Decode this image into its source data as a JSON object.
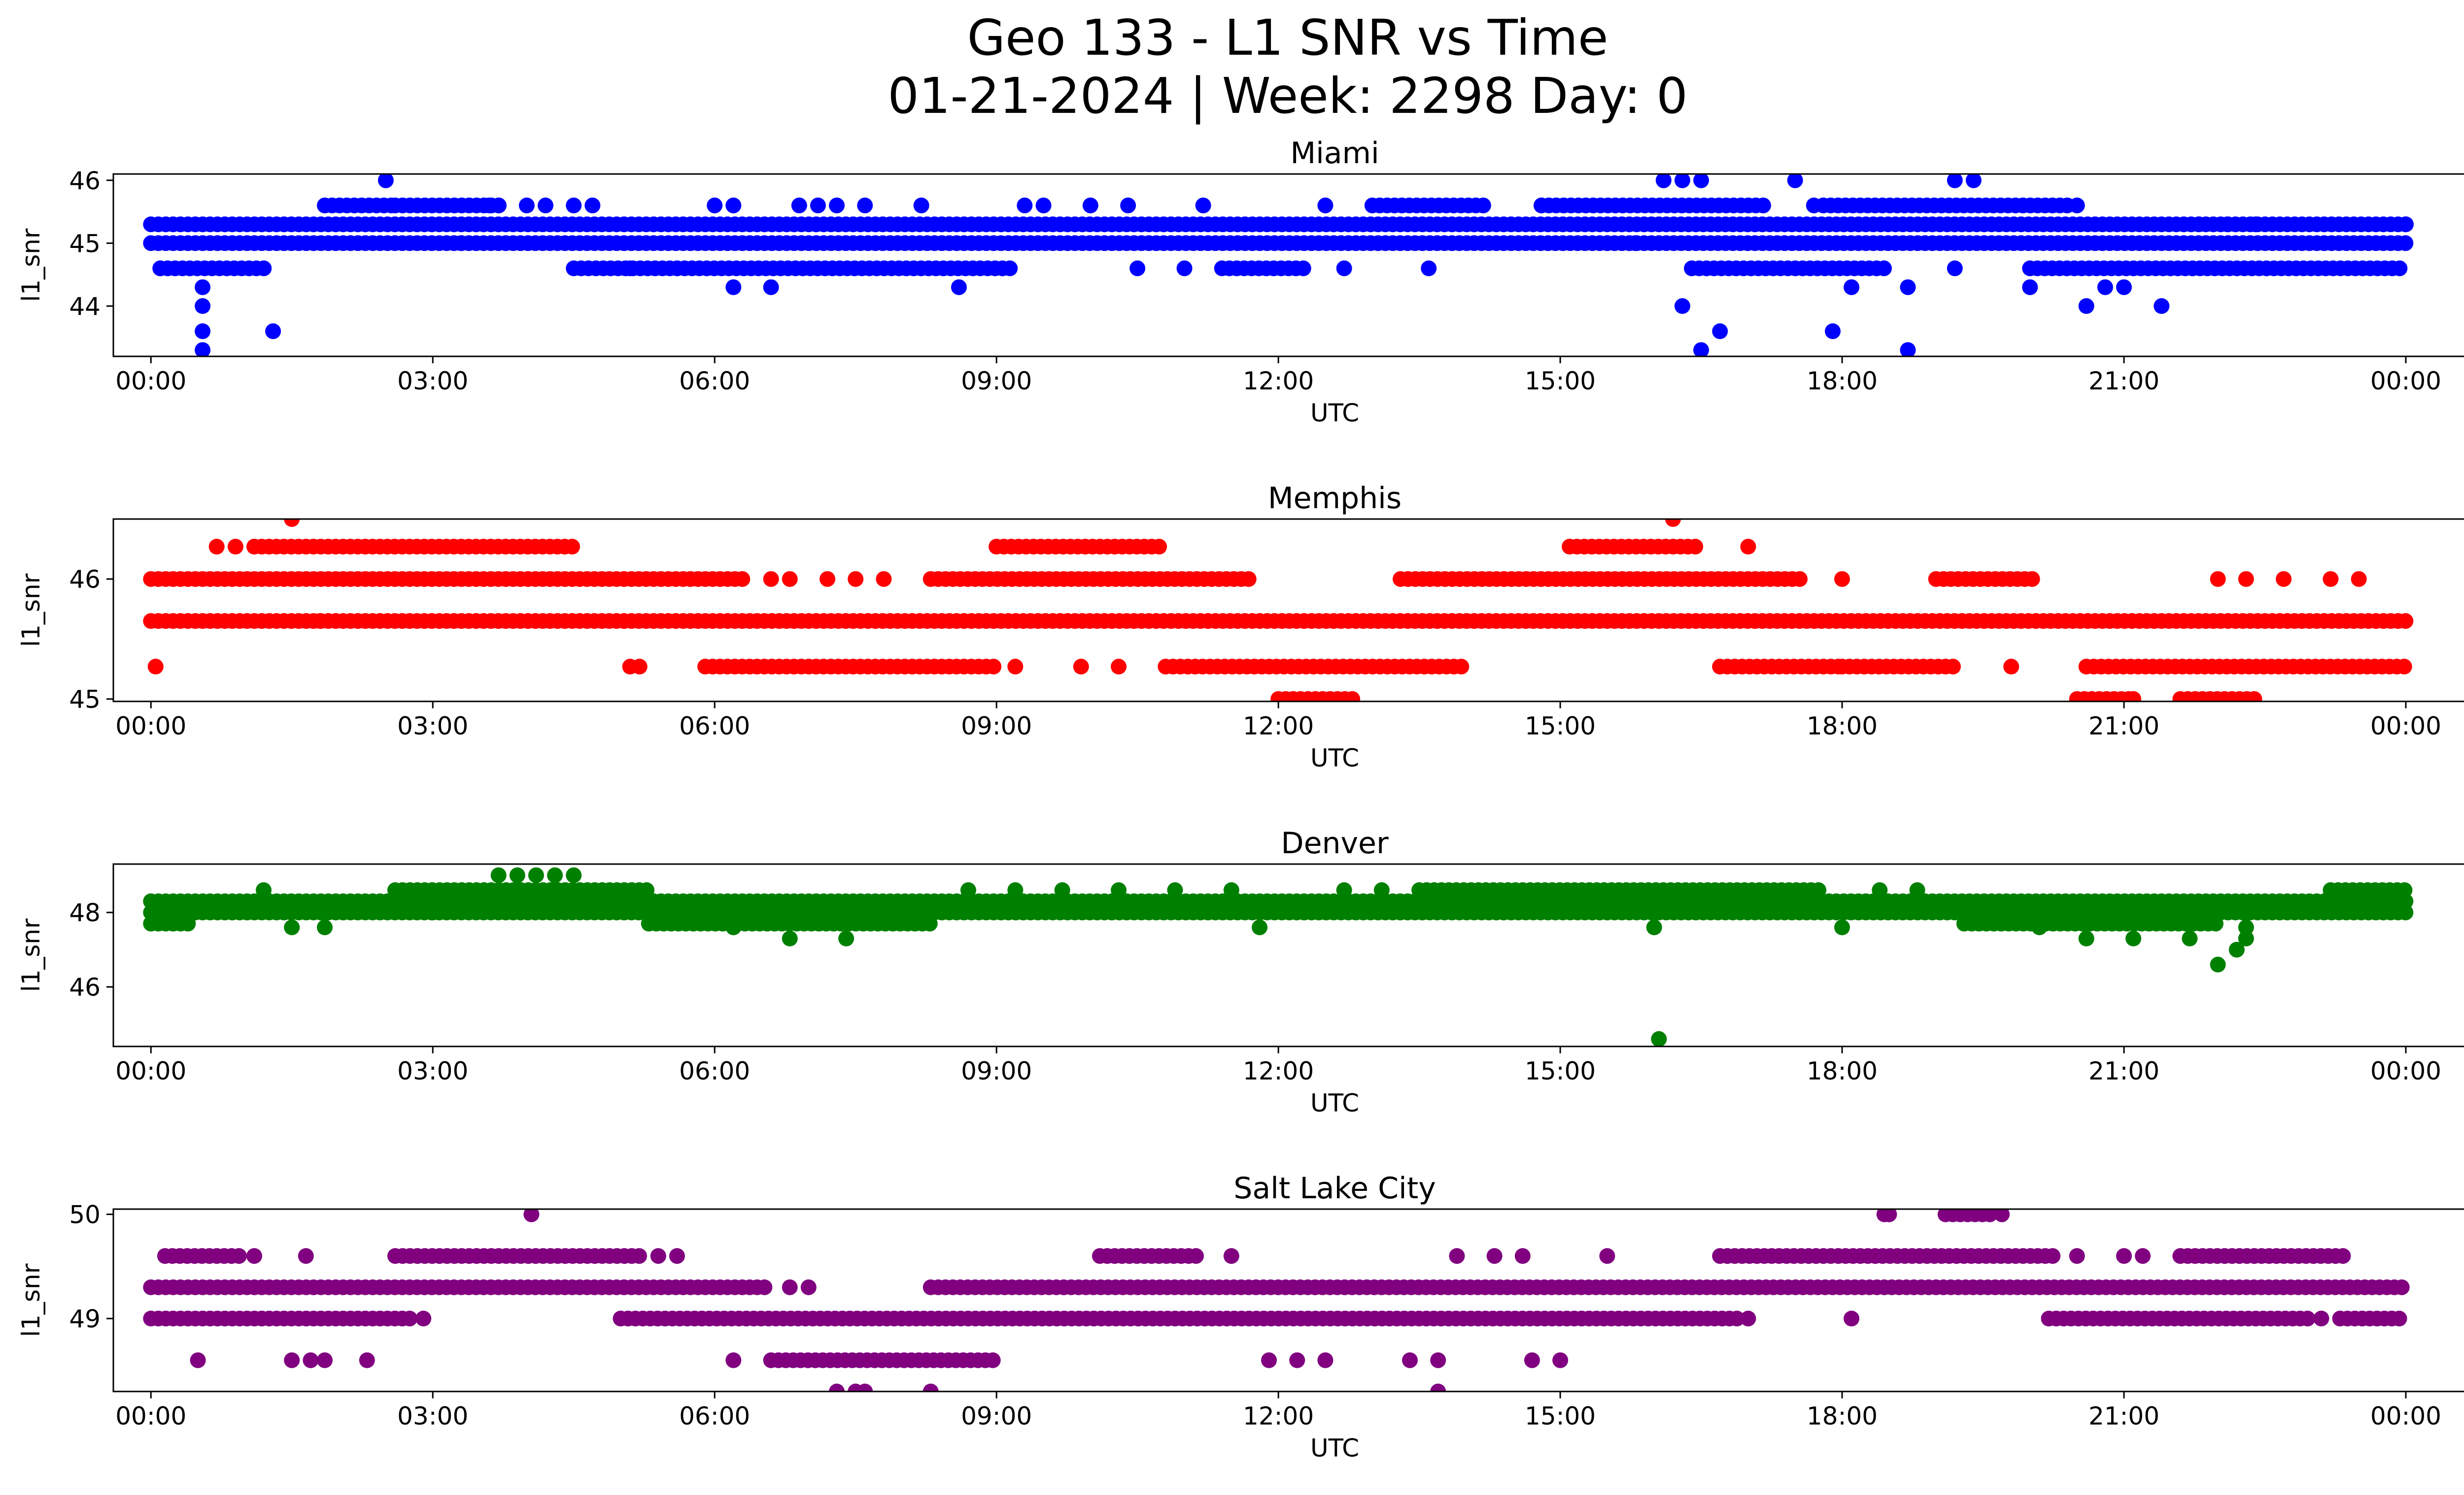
{
  "figure": {
    "title_line1": "Geo 133 - L1 SNR vs Time",
    "title_line2": "01-21-2024 | Week: 2298 Day: 0"
  },
  "chart_data": [
    {
      "type": "scatter",
      "title": "Miami",
      "xlabel": "UTC",
      "ylabel": "l1_snr",
      "color": "#0000ff",
      "x_unit": "hours UTC",
      "xlim": [
        -0.4,
        25.6
      ],
      "ylim": [
        43.2,
        46.1
      ],
      "xticks": [
        0,
        3,
        6,
        9,
        12,
        15,
        18,
        21,
        24
      ],
      "xtick_labels": [
        "00:00",
        "03:00",
        "06:00",
        "09:00",
        "12:00",
        "15:00",
        "18:00",
        "21:00",
        "00:00"
      ],
      "yticks": [
        44,
        45,
        46
      ],
      "ytick_labels": [
        "44",
        "45",
        "46"
      ],
      "grid": false,
      "dense_bands": [
        {
          "y": 45.3,
          "x_range": [
            0.0,
            24.0
          ]
        },
        {
          "y": 45.0,
          "x_range": [
            0.0,
            24.0
          ]
        },
        {
          "y": 45.6,
          "x_range": [
            1.85,
            2.6
          ]
        },
        {
          "y": 45.6,
          "x_range": [
            2.6,
            3.75
          ]
        },
        {
          "y": 45.6,
          "x_range": [
            13.0,
            14.2
          ]
        },
        {
          "y": 45.6,
          "x_range": [
            14.8,
            17.2
          ]
        },
        {
          "y": 45.6,
          "x_range": [
            17.8,
            20.4
          ]
        },
        {
          "y": 44.6,
          "x_range": [
            0.1,
            1.25
          ]
        },
        {
          "y": 44.6,
          "x_range": [
            4.5,
            9.2
          ]
        },
        {
          "y": 44.6,
          "x_range": [
            11.4,
            12.3
          ]
        },
        {
          "y": 44.6,
          "x_range": [
            16.4,
            18.5
          ]
        },
        {
          "y": 44.6,
          "x_range": [
            20.0,
            24.0
          ]
        }
      ],
      "sparse_points": [
        {
          "x": 0.1,
          "y": 44.6
        },
        {
          "x": 0.55,
          "y": 44.3
        },
        {
          "x": 0.55,
          "y": 44.0
        },
        {
          "x": 0.55,
          "y": 43.6
        },
        {
          "x": 0.55,
          "y": 43.3
        },
        {
          "x": 1.3,
          "y": 43.6
        },
        {
          "x": 2.5,
          "y": 46.0
        },
        {
          "x": 3.3,
          "y": 45.0
        },
        {
          "x": 3.6,
          "y": 45.6
        },
        {
          "x": 4.0,
          "y": 45.6
        },
        {
          "x": 4.2,
          "y": 45.6
        },
        {
          "x": 4.5,
          "y": 45.6
        },
        {
          "x": 4.7,
          "y": 45.6
        },
        {
          "x": 5.1,
          "y": 44.6
        },
        {
          "x": 5.6,
          "y": 44.6
        },
        {
          "x": 6.0,
          "y": 45.6
        },
        {
          "x": 6.2,
          "y": 45.6
        },
        {
          "x": 6.2,
          "y": 44.3
        },
        {
          "x": 6.6,
          "y": 44.3
        },
        {
          "x": 6.9,
          "y": 45.6
        },
        {
          "x": 7.1,
          "y": 45.6
        },
        {
          "x": 7.3,
          "y": 45.6
        },
        {
          "x": 7.6,
          "y": 45.6
        },
        {
          "x": 8.2,
          "y": 45.6
        },
        {
          "x": 8.6,
          "y": 44.3
        },
        {
          "x": 9.3,
          "y": 45.6
        },
        {
          "x": 9.5,
          "y": 45.6
        },
        {
          "x": 10.0,
          "y": 45.6
        },
        {
          "x": 10.4,
          "y": 45.6
        },
        {
          "x": 10.5,
          "y": 44.6
        },
        {
          "x": 11.2,
          "y": 45.6
        },
        {
          "x": 11.0,
          "y": 44.6
        },
        {
          "x": 12.5,
          "y": 45.6
        },
        {
          "x": 12.7,
          "y": 44.6
        },
        {
          "x": 13.6,
          "y": 44.6
        },
        {
          "x": 15.5,
          "y": 45.0
        },
        {
          "x": 15.8,
          "y": 45.0
        },
        {
          "x": 16.1,
          "y": 46.0
        },
        {
          "x": 16.3,
          "y": 46.0
        },
        {
          "x": 16.5,
          "y": 46.0
        },
        {
          "x": 16.3,
          "y": 44.0
        },
        {
          "x": 16.5,
          "y": 43.3
        },
        {
          "x": 16.7,
          "y": 43.6
        },
        {
          "x": 17.5,
          "y": 46.0
        },
        {
          "x": 17.7,
          "y": 45.6
        },
        {
          "x": 17.9,
          "y": 43.6
        },
        {
          "x": 18.1,
          "y": 44.3
        },
        {
          "x": 18.7,
          "y": 44.3
        },
        {
          "x": 18.7,
          "y": 43.3
        },
        {
          "x": 19.2,
          "y": 46.0
        },
        {
          "x": 19.4,
          "y": 46.0
        },
        {
          "x": 19.2,
          "y": 44.6
        },
        {
          "x": 20.0,
          "y": 44.3
        },
        {
          "x": 20.5,
          "y": 45.6
        },
        {
          "x": 20.6,
          "y": 44.0
        },
        {
          "x": 20.8,
          "y": 44.3
        },
        {
          "x": 21.0,
          "y": 44.3
        },
        {
          "x": 21.4,
          "y": 44.0
        },
        {
          "x": 21.8,
          "y": 45.3
        },
        {
          "x": 22.1,
          "y": 45.3
        },
        {
          "x": 22.4,
          "y": 45.3
        },
        {
          "x": 24.0,
          "y": 45.3
        }
      ]
    },
    {
      "type": "scatter",
      "title": "Memphis",
      "xlabel": "UTC",
      "ylabel": "l1_snr",
      "color": "#ff0000",
      "x_unit": "hours UTC",
      "xlim": [
        -0.4,
        25.6
      ],
      "ylim": [
        44.98,
        46.5
      ],
      "xticks": [
        0,
        3,
        6,
        9,
        12,
        15,
        18,
        21,
        24
      ],
      "xtick_labels": [
        "00:00",
        "03:00",
        "06:00",
        "09:00",
        "12:00",
        "15:00",
        "18:00",
        "21:00",
        "00:00"
      ],
      "yticks": [
        45,
        46
      ],
      "ytick_labels": [
        "45",
        "46"
      ],
      "grid": false,
      "dense_bands": [
        {
          "y": 46.0,
          "x_range": [
            0.0,
            6.3
          ]
        },
        {
          "y": 46.0,
          "x_range": [
            8.3,
            11.7
          ]
        },
        {
          "y": 46.0,
          "x_range": [
            13.3,
            17.6
          ]
        },
        {
          "y": 46.0,
          "x_range": [
            19.0,
            20.1
          ]
        },
        {
          "y": 46.27,
          "x_range": [
            1.1,
            4.5
          ]
        },
        {
          "y": 46.27,
          "x_range": [
            9.0,
            10.8
          ]
        },
        {
          "y": 46.27,
          "x_range": [
            15.1,
            16.5
          ]
        },
        {
          "y": 45.65,
          "x_range": [
            0.0,
            24.0
          ]
        },
        {
          "y": 45.27,
          "x_range": [
            5.9,
            9.0
          ]
        },
        {
          "y": 45.27,
          "x_range": [
            10.8,
            14.0
          ]
        },
        {
          "y": 45.27,
          "x_range": [
            16.7,
            18.0
          ]
        },
        {
          "y": 45.27,
          "x_range": [
            18.0,
            19.2
          ]
        },
        {
          "y": 45.27,
          "x_range": [
            20.6,
            24.0
          ]
        },
        {
          "y": 45.0,
          "x_range": [
            12.0,
            12.8
          ]
        },
        {
          "y": 45.0,
          "x_range": [
            20.5,
            21.1
          ]
        },
        {
          "y": 45.0,
          "x_range": [
            21.6,
            22.4
          ]
        }
      ],
      "sparse_points": [
        {
          "x": 0.05,
          "y": 45.27
        },
        {
          "x": 0.7,
          "y": 46.27
        },
        {
          "x": 0.9,
          "y": 46.27
        },
        {
          "x": 1.5,
          "y": 46.5
        },
        {
          "x": 1.8,
          "y": 45.65
        },
        {
          "x": 6.6,
          "y": 46.0
        },
        {
          "x": 6.8,
          "y": 46.0
        },
        {
          "x": 7.2,
          "y": 46.0
        },
        {
          "x": 7.5,
          "y": 46.0
        },
        {
          "x": 7.8,
          "y": 46.0
        },
        {
          "x": 5.1,
          "y": 45.27
        },
        {
          "x": 5.2,
          "y": 45.27
        },
        {
          "x": 9.2,
          "y": 45.27
        },
        {
          "x": 9.9,
          "y": 45.27
        },
        {
          "x": 10.3,
          "y": 45.27
        },
        {
          "x": 16.2,
          "y": 46.5
        },
        {
          "x": 17.0,
          "y": 46.27
        },
        {
          "x": 18.0,
          "y": 46.0
        },
        {
          "x": 21.1,
          "y": 45.0
        },
        {
          "x": 22.0,
          "y": 46.0
        },
        {
          "x": 22.3,
          "y": 46.0
        },
        {
          "x": 22.7,
          "y": 46.0
        },
        {
          "x": 23.2,
          "y": 46.0
        },
        {
          "x": 23.5,
          "y": 46.0
        },
        {
          "x": 19.8,
          "y": 45.27
        }
      ]
    },
    {
      "type": "scatter",
      "title": "Denver",
      "xlabel": "UTC",
      "ylabel": "l1_snr",
      "color": "#008000",
      "x_unit": "hours UTC",
      "xlim": [
        -0.4,
        25.6
      ],
      "ylim": [
        44.4,
        49.3
      ],
      "xticks": [
        0,
        3,
        6,
        9,
        12,
        15,
        18,
        21,
        24
      ],
      "xtick_labels": [
        "00:00",
        "03:00",
        "06:00",
        "09:00",
        "12:00",
        "15:00",
        "18:00",
        "21:00",
        "00:00"
      ],
      "yticks": [
        46,
        48
      ],
      "ytick_labels": [
        "46",
        "48"
      ],
      "grid": false,
      "dense_bands": [
        {
          "y": 48.0,
          "x_range": [
            0.0,
            24.0
          ]
        },
        {
          "y": 48.3,
          "x_range": [
            0.0,
            24.0
          ]
        },
        {
          "y": 48.6,
          "x_range": [
            2.6,
            5.3
          ]
        },
        {
          "y": 48.6,
          "x_range": [
            13.5,
            17.8
          ]
        },
        {
          "y": 48.6,
          "x_range": [
            23.2,
            24.0
          ]
        },
        {
          "y": 47.7,
          "x_range": [
            5.3,
            8.3
          ]
        },
        {
          "y": 47.7,
          "x_range": [
            19.3,
            22.0
          ]
        },
        {
          "y": 47.7,
          "x_range": [
            0.0,
            0.4
          ]
        }
      ],
      "sparse_points": [
        {
          "x": 1.2,
          "y": 48.6
        },
        {
          "x": 1.5,
          "y": 47.6
        },
        {
          "x": 1.85,
          "y": 47.6
        },
        {
          "x": 3.0,
          "y": 48.0
        },
        {
          "x": 3.7,
          "y": 49.0
        },
        {
          "x": 3.9,
          "y": 49.0
        },
        {
          "x": 4.1,
          "y": 49.0
        },
        {
          "x": 4.3,
          "y": 49.0
        },
        {
          "x": 4.5,
          "y": 49.0
        },
        {
          "x": 6.2,
          "y": 47.6
        },
        {
          "x": 6.8,
          "y": 47.3
        },
        {
          "x": 7.4,
          "y": 47.3
        },
        {
          "x": 8.7,
          "y": 48.6
        },
        {
          "x": 9.2,
          "y": 48.6
        },
        {
          "x": 9.7,
          "y": 48.6
        },
        {
          "x": 10.3,
          "y": 48.6
        },
        {
          "x": 10.9,
          "y": 48.6
        },
        {
          "x": 11.5,
          "y": 48.6
        },
        {
          "x": 11.8,
          "y": 47.6
        },
        {
          "x": 12.7,
          "y": 48.6
        },
        {
          "x": 13.1,
          "y": 48.6
        },
        {
          "x": 16.0,
          "y": 47.6
        },
        {
          "x": 16.05,
          "y": 44.6
        },
        {
          "x": 18.0,
          "y": 47.6
        },
        {
          "x": 18.4,
          "y": 48.6
        },
        {
          "x": 18.8,
          "y": 48.6
        },
        {
          "x": 20.1,
          "y": 47.6
        },
        {
          "x": 20.6,
          "y": 47.3
        },
        {
          "x": 21.1,
          "y": 47.3
        },
        {
          "x": 21.7,
          "y": 47.3
        },
        {
          "x": 22.0,
          "y": 46.6
        },
        {
          "x": 22.2,
          "y": 47.0
        },
        {
          "x": 22.3,
          "y": 47.3
        },
        {
          "x": 22.3,
          "y": 47.6
        }
      ]
    },
    {
      "type": "scatter",
      "title": "Salt Lake City",
      "xlabel": "UTC",
      "ylabel": "l1_snr",
      "color": "#800080",
      "x_unit": "hours UTC",
      "xlim": [
        -0.4,
        25.6
      ],
      "ylim": [
        48.3,
        50.05
      ],
      "xticks": [
        0,
        3,
        6,
        9,
        12,
        15,
        18,
        21,
        24
      ],
      "xtick_labels": [
        "00:00",
        "03:00",
        "06:00",
        "09:00",
        "12:00",
        "15:00",
        "18:00",
        "21:00",
        "00:00"
      ],
      "yticks": [
        49,
        50
      ],
      "ytick_labels": [
        "49",
        "50"
      ],
      "grid": false,
      "dense_bands": [
        {
          "y": 49.3,
          "x_range": [
            0.0,
            6.6
          ]
        },
        {
          "y": 49.3,
          "x_range": [
            8.3,
            24.0
          ]
        },
        {
          "y": 49.0,
          "x_range": [
            0.0,
            2.8
          ]
        },
        {
          "y": 49.0,
          "x_range": [
            5.0,
            16.9
          ]
        },
        {
          "y": 49.0,
          "x_range": [
            20.2,
            23.0
          ]
        },
        {
          "y": 49.0,
          "x_range": [
            23.3,
            24.0
          ]
        },
        {
          "y": 49.6,
          "x_range": [
            0.15,
            1.0
          ]
        },
        {
          "y": 49.6,
          "x_range": [
            2.6,
            5.2
          ]
        },
        {
          "y": 49.6,
          "x_range": [
            10.1,
            11.2
          ]
        },
        {
          "y": 49.6,
          "x_range": [
            16.7,
            20.3
          ]
        },
        {
          "y": 49.6,
          "x_range": [
            21.6,
            23.4
          ]
        },
        {
          "y": 48.6,
          "x_range": [
            6.6,
            9.0
          ]
        },
        {
          "y": 50.0,
          "x_range": [
            19.1,
            19.6
          ]
        }
      ],
      "sparse_points": [
        {
          "x": 0.5,
          "y": 48.6
        },
        {
          "x": 1.1,
          "y": 49.6
        },
        {
          "x": 1.5,
          "y": 48.6
        },
        {
          "x": 1.65,
          "y": 49.6
        },
        {
          "x": 1.7,
          "y": 48.6
        },
        {
          "x": 1.85,
          "y": 48.6
        },
        {
          "x": 2.3,
          "y": 48.6
        },
        {
          "x": 2.9,
          "y": 49.0
        },
        {
          "x": 4.05,
          "y": 50.0
        },
        {
          "x": 5.4,
          "y": 49.6
        },
        {
          "x": 5.6,
          "y": 49.6
        },
        {
          "x": 6.2,
          "y": 48.6
        },
        {
          "x": 6.8,
          "y": 49.3
        },
        {
          "x": 7.0,
          "y": 49.3
        },
        {
          "x": 7.3,
          "y": 48.3
        },
        {
          "x": 7.5,
          "y": 48.3
        },
        {
          "x": 7.6,
          "y": 48.3
        },
        {
          "x": 8.3,
          "y": 48.3
        },
        {
          "x": 11.5,
          "y": 49.6
        },
        {
          "x": 11.9,
          "y": 48.6
        },
        {
          "x": 12.2,
          "y": 48.6
        },
        {
          "x": 12.5,
          "y": 48.6
        },
        {
          "x": 13.4,
          "y": 48.6
        },
        {
          "x": 13.7,
          "y": 48.6
        },
        {
          "x": 13.7,
          "y": 48.3
        },
        {
          "x": 13.9,
          "y": 49.6
        },
        {
          "x": 14.3,
          "y": 49.6
        },
        {
          "x": 14.6,
          "y": 49.6
        },
        {
          "x": 14.7,
          "y": 48.6
        },
        {
          "x": 15.0,
          "y": 48.6
        },
        {
          "x": 15.5,
          "y": 49.6
        },
        {
          "x": 17.0,
          "y": 49.0
        },
        {
          "x": 18.1,
          "y": 49.0
        },
        {
          "x": 18.45,
          "y": 50.0
        },
        {
          "x": 18.5,
          "y": 50.0
        },
        {
          "x": 19.7,
          "y": 50.0
        },
        {
          "x": 20.5,
          "y": 49.6
        },
        {
          "x": 21.0,
          "y": 49.6
        },
        {
          "x": 21.2,
          "y": 49.6
        },
        {
          "x": 23.1,
          "y": 49.0
        }
      ]
    }
  ]
}
